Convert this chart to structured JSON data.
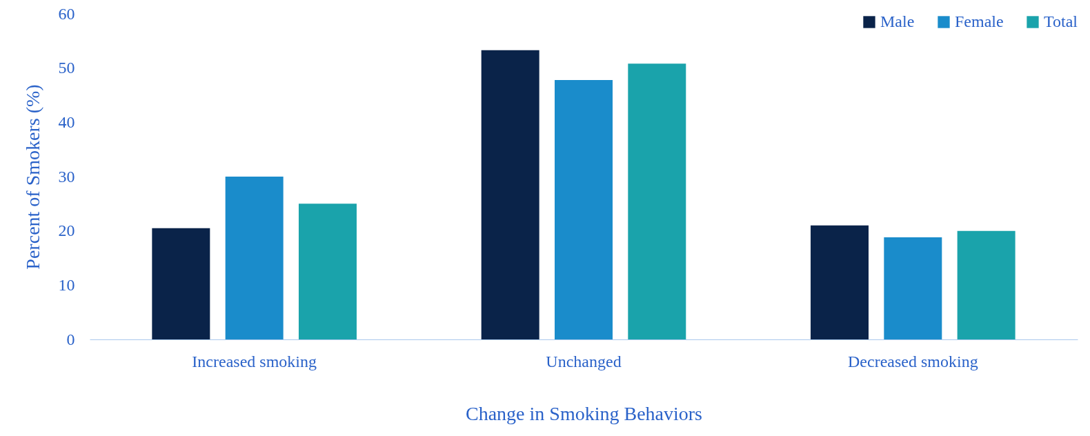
{
  "chart_data": {
    "type": "bar",
    "xlabel": "Change in Smoking Behaviors",
    "ylabel": "Percent of Smokers (%)",
    "categories": [
      "Increased smoking",
      "Unchanged",
      "Decreased smoking"
    ],
    "series": [
      {
        "name": "Male",
        "color": "#0a2349",
        "values": [
          20.5,
          53.3,
          21.0
        ]
      },
      {
        "name": "Female",
        "color": "#1a8ccb",
        "values": [
          30.0,
          47.8,
          18.8
        ]
      },
      {
        "name": "Total",
        "color": "#1aa3ab",
        "values": [
          25.0,
          50.8,
          20.0
        ]
      }
    ],
    "ylim": [
      0,
      60
    ],
    "yticks": [
      0,
      10,
      20,
      30,
      40,
      50,
      60
    ],
    "legend": "top right"
  }
}
